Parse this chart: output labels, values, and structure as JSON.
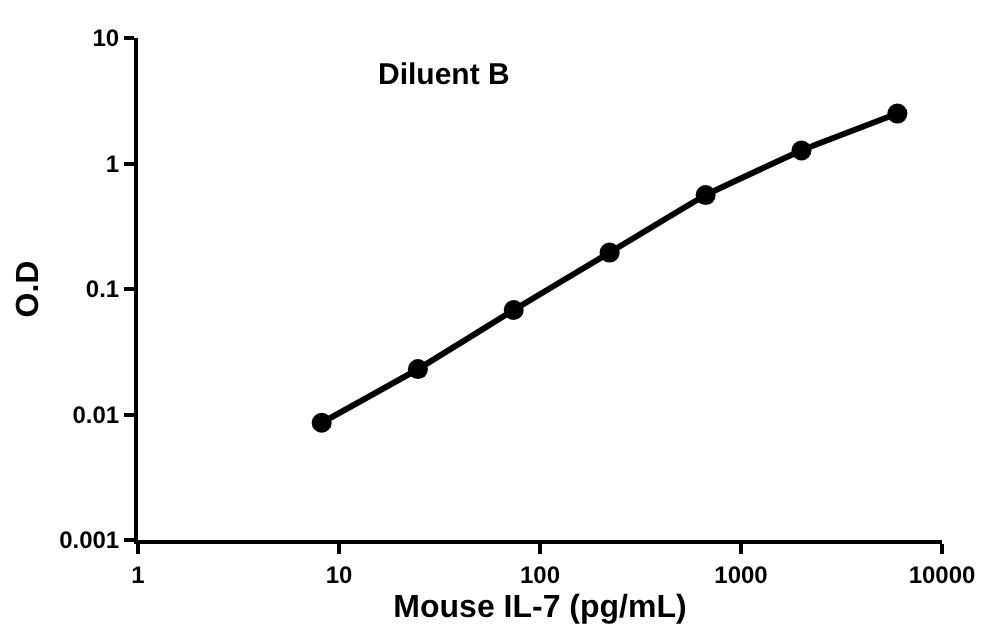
{
  "chart_data": {
    "type": "line",
    "title": "Diluent B",
    "xlabel": "Mouse IL-7 (pg/mL)",
    "ylabel": "O.D",
    "x": [
      8.2,
      24.7,
      74,
      222,
      667,
      2000,
      6000
    ],
    "series": [
      {
        "color": "#000000",
        "values": [
          0.0086,
          0.023,
          0.068,
          0.195,
          0.56,
          1.27,
          2.5
        ]
      }
    ],
    "log": "xy",
    "xlim": [
      1,
      10000
    ],
    "xticks": [
      1,
      10,
      100,
      1000,
      10000
    ],
    "ylim": [
      0.001,
      10
    ],
    "yticks": [
      0.001,
      0.01,
      0.1,
      1,
      10
    ],
    "marker": "circle",
    "line_style": "solid"
  }
}
